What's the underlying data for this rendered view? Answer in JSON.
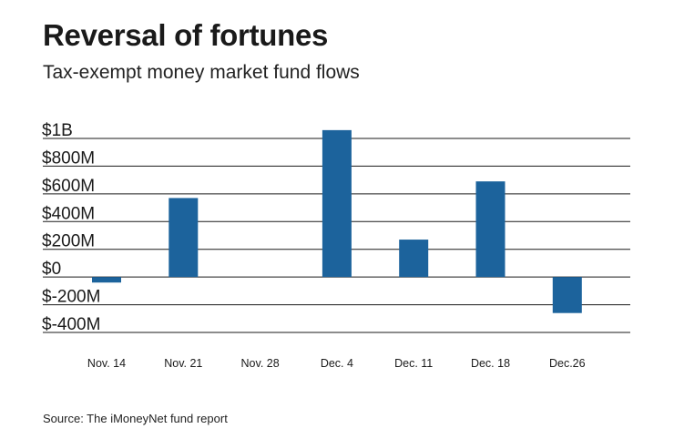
{
  "title": "Reversal of fortunes",
  "subtitle": "Tax-exempt money market fund flows",
  "source": "Source: The iMoneyNet fund report",
  "colors": {
    "bar": "#1c639c",
    "grid": "#1a1a1a",
    "text": "#1a1a1a"
  },
  "chart_data": {
    "type": "bar",
    "title": "Reversal of fortunes",
    "subtitle": "Tax-exempt money market fund flows",
    "xlabel": "",
    "ylabel": "",
    "categories": [
      "Nov. 14",
      "Nov. 21",
      "Nov. 28",
      "Dec. 4",
      "Dec. 11",
      "Dec. 18",
      "Dec.26"
    ],
    "values": [
      -40,
      570,
      0,
      1060,
      270,
      690,
      -260
    ],
    "unit": "M",
    "ylim": [
      -400,
      1000
    ],
    "yticks": [
      1000,
      800,
      600,
      400,
      200,
      0,
      -200,
      -400
    ],
    "ytick_labels": [
      "$1B",
      "$800M",
      "$600M",
      "$400M",
      "$200M",
      "$0",
      "$-200M",
      "$-400M"
    ],
    "grid": true,
    "legend": "none"
  }
}
